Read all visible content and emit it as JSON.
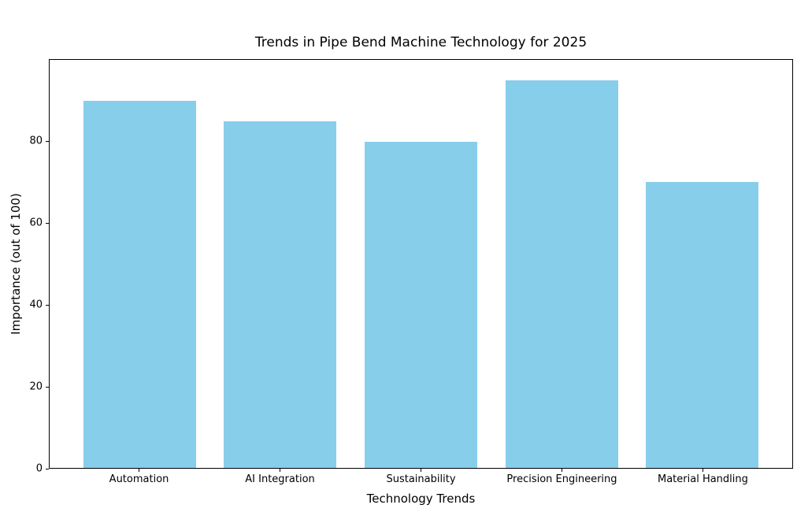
{
  "chart_data": {
    "type": "bar",
    "title": "Trends in Pipe Bend Machine Technology for 2025",
    "xlabel": "Technology Trends",
    "ylabel": "Importance (out of 100)",
    "categories": [
      "Automation",
      "AI Integration",
      "Sustainability",
      "Precision Engineering",
      "Material Handling"
    ],
    "values": [
      90,
      85,
      80,
      95,
      70
    ],
    "yticks": [
      0,
      20,
      40,
      60,
      80
    ],
    "ylim": [
      0,
      100
    ],
    "xlim": [
      -0.64,
      4.64
    ],
    "bar_width_units": 0.8,
    "bar_color": "#87CEEB",
    "background_color": "#FFFFFF",
    "spine_color": "#000000",
    "grid": false,
    "legend": "none"
  }
}
